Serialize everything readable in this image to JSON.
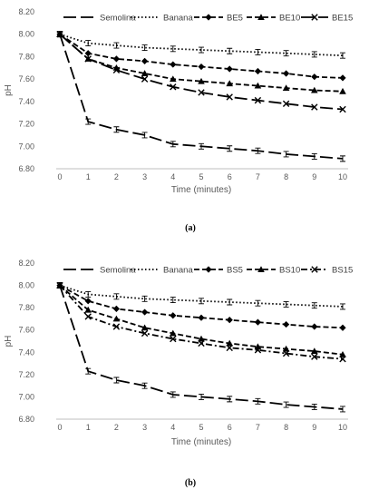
{
  "colors": {
    "series": "#000000",
    "axis_text": "#595959",
    "grid": "#d9d9d9"
  },
  "chart_data": [
    {
      "type": "line",
      "caption": "(a)",
      "xlabel": "Time (minutes)",
      "ylabel": "pH",
      "x": [
        0,
        1,
        2,
        3,
        4,
        5,
        6,
        7,
        8,
        9,
        10
      ],
      "xlim": [
        0,
        10
      ],
      "ylim": [
        6.8,
        8.2
      ],
      "yticks": [
        "6.80",
        "7.00",
        "7.20",
        "7.40",
        "7.60",
        "7.80",
        "8.00",
        "8.20"
      ],
      "grid": false,
      "legend_position": "top",
      "series": [
        {
          "name": "Semolina",
          "style": "long-dash",
          "marker": "bar",
          "values": [
            8.0,
            7.22,
            7.15,
            7.1,
            7.02,
            7.0,
            6.98,
            6.96,
            6.93,
            6.91,
            6.89
          ]
        },
        {
          "name": "Banana",
          "style": "dotted",
          "marker": "bar",
          "values": [
            8.0,
            7.92,
            7.9,
            7.88,
            7.87,
            7.86,
            7.85,
            7.84,
            7.83,
            7.82,
            7.81
          ]
        },
        {
          "name": "BE5",
          "style": "dash",
          "marker": "diamond",
          "values": [
            8.0,
            7.83,
            7.78,
            7.76,
            7.73,
            7.71,
            7.69,
            7.67,
            7.65,
            7.62,
            7.61
          ]
        },
        {
          "name": "BE10",
          "style": "dash",
          "marker": "triangle",
          "values": [
            8.0,
            7.78,
            7.7,
            7.65,
            7.6,
            7.58,
            7.56,
            7.54,
            7.52,
            7.5,
            7.49
          ]
        },
        {
          "name": "BE15",
          "style": "long-dash",
          "marker": "x",
          "values": [
            8.0,
            7.78,
            7.68,
            7.6,
            7.53,
            7.48,
            7.44,
            7.41,
            7.38,
            7.35,
            7.33
          ]
        }
      ]
    },
    {
      "type": "line",
      "caption": "(b)",
      "xlabel": "Time (minutes)",
      "ylabel": "pH",
      "x": [
        0,
        1,
        2,
        3,
        4,
        5,
        6,
        7,
        8,
        9,
        10
      ],
      "xlim": [
        0,
        10
      ],
      "ylim": [
        6.8,
        8.2
      ],
      "yticks": [
        "6.80",
        "7.00",
        "7.20",
        "7.40",
        "7.60",
        "7.80",
        "8.00",
        "8.20"
      ],
      "grid": false,
      "legend_position": "top",
      "series": [
        {
          "name": "Semolina",
          "style": "long-dash",
          "marker": "bar",
          "values": [
            8.0,
            7.23,
            7.15,
            7.1,
            7.02,
            7.0,
            6.98,
            6.96,
            6.93,
            6.91,
            6.89
          ]
        },
        {
          "name": "Banana",
          "style": "dotted",
          "marker": "bar",
          "values": [
            8.0,
            7.92,
            7.9,
            7.88,
            7.87,
            7.86,
            7.85,
            7.84,
            7.83,
            7.82,
            7.81
          ]
        },
        {
          "name": "BS5",
          "style": "dash",
          "marker": "diamond",
          "values": [
            8.0,
            7.86,
            7.79,
            7.76,
            7.73,
            7.71,
            7.69,
            7.67,
            7.65,
            7.63,
            7.62
          ]
        },
        {
          "name": "BS10",
          "style": "dash",
          "marker": "triangle",
          "values": [
            8.0,
            7.78,
            7.7,
            7.62,
            7.57,
            7.52,
            7.48,
            7.45,
            7.43,
            7.41,
            7.38
          ]
        },
        {
          "name": "BS15",
          "style": "dash-dot",
          "marker": "x",
          "values": [
            8.0,
            7.72,
            7.63,
            7.57,
            7.52,
            7.48,
            7.44,
            7.42,
            7.39,
            7.36,
            7.34
          ]
        }
      ]
    }
  ]
}
